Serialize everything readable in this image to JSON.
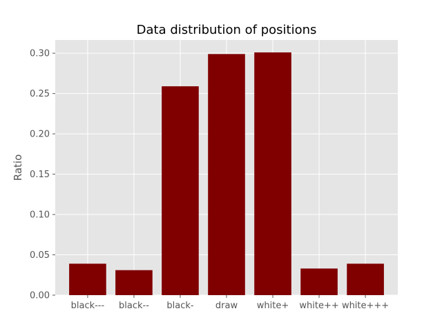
{
  "chart_data": {
    "type": "bar",
    "title": "Data distribution of positions",
    "xlabel": "",
    "ylabel": "Ratio",
    "categories": [
      "black---",
      "black--",
      "black-",
      "draw",
      "white+",
      "white++",
      "white+++"
    ],
    "values": [
      0.039,
      0.031,
      0.259,
      0.299,
      0.301,
      0.033,
      0.039
    ],
    "ylim": [
      0,
      0.3
    ],
    "yticks": [
      "0.00",
      "0.05",
      "0.10",
      "0.15",
      "0.20",
      "0.25",
      "0.30"
    ],
    "grid": true,
    "colors": {
      "bar": "#800000",
      "plot_background": "#e5e5e5",
      "grid": "#ffffff"
    }
  }
}
